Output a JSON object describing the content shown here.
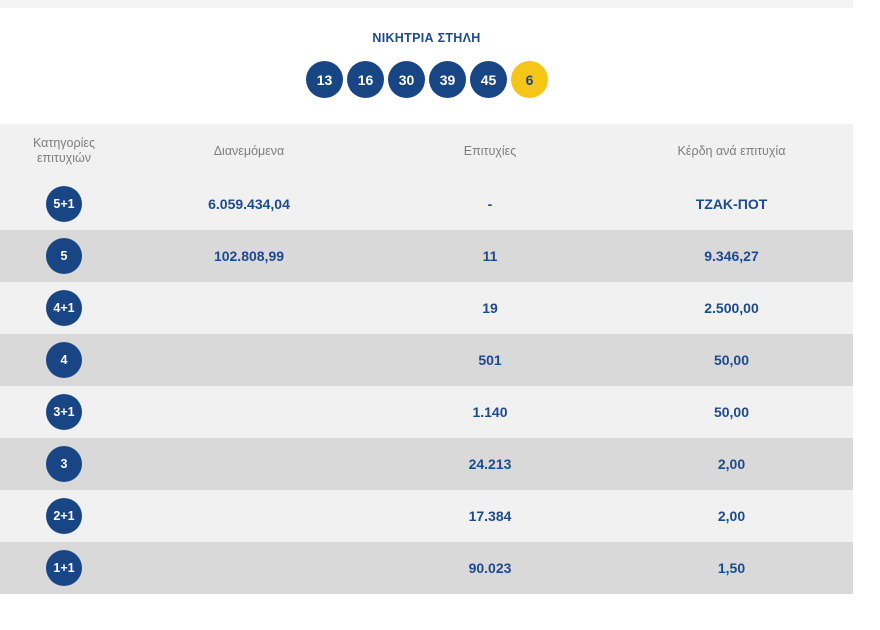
{
  "winning": {
    "title": "ΝΙΚΗΤΡΙΑ ΣΤΗΛΗ",
    "numbers": [
      "13",
      "16",
      "30",
      "39",
      "45"
    ],
    "joker": "6"
  },
  "table": {
    "headers": {
      "category_line1": "Κατηγορίες",
      "category_line2": "επιτυχιών",
      "distributed": "Διανεμόμενα",
      "winners": "Επιτυχίες",
      "prize": "Κέρδη ανά επιτυχία"
    },
    "rows": [
      {
        "category": "5+1",
        "distributed": "6.059.434,04",
        "winners": "-",
        "prize": "ΤΖΑΚ-ΠΟΤ"
      },
      {
        "category": "5",
        "distributed": "102.808,99",
        "winners": "11",
        "prize": "9.346,27"
      },
      {
        "category": "4+1",
        "distributed": "",
        "winners": "19",
        "prize": "2.500,00"
      },
      {
        "category": "4",
        "distributed": "",
        "winners": "501",
        "prize": "50,00"
      },
      {
        "category": "3+1",
        "distributed": "",
        "winners": "1.140",
        "prize": "50,00"
      },
      {
        "category": "3",
        "distributed": "",
        "winners": "24.213",
        "prize": "2,00"
      },
      {
        "category": "2+1",
        "distributed": "",
        "winners": "17.384",
        "prize": "2,00"
      },
      {
        "category": "1+1",
        "distributed": "",
        "winners": "90.023",
        "prize": "1,50"
      }
    ]
  },
  "colors": {
    "ball_blue": "#184685",
    "joker_yellow": "#f5c518",
    "text_blue": "#1d4a8e",
    "row_light": "#f1f1f1",
    "row_dark": "#d9d9d9"
  }
}
